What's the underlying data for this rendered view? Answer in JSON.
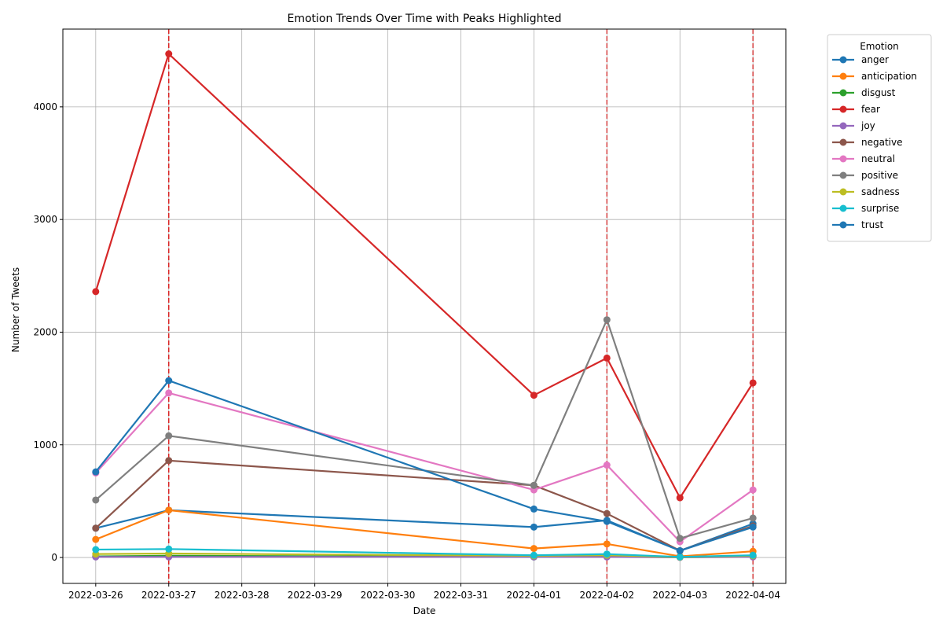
{
  "chart_data": {
    "type": "line",
    "title": "Emotion Trends Over Time with Peaks Highlighted",
    "xlabel": "Date",
    "ylabel": "Number of Tweets",
    "x_ticks": [
      "2022-03-26",
      "2022-03-27",
      "2022-03-28",
      "2022-03-29",
      "2022-03-30",
      "2022-03-31",
      "2022-04-01",
      "2022-04-02",
      "2022-04-03",
      "2022-04-04"
    ],
    "x": [
      "2022-03-26",
      "2022-03-27",
      "2022-04-01",
      "2022-04-02",
      "2022-04-03",
      "2022-04-04"
    ],
    "xlim": [
      "2022-03-25T13:12",
      "2022-04-04T10:48"
    ],
    "ylim": [
      -230,
      4690
    ],
    "y_ticks": [
      0,
      1000,
      2000,
      3000,
      4000
    ],
    "grid": true,
    "legend": {
      "title": "Emotion",
      "placement": "outside-top-right"
    },
    "peaks": [
      {
        "date": "2022-03-27",
        "color": "#ff0000"
      },
      {
        "date": "2022-03-27",
        "color": "#d62728"
      },
      {
        "date": "2022-04-02",
        "color": "#d62728"
      },
      {
        "date": "2022-04-04",
        "color": "#d62728"
      }
    ],
    "series": [
      {
        "name": "anger",
        "color": "#1f77b4",
        "values": [
          260,
          420,
          270,
          330,
          60,
          300
        ]
      },
      {
        "name": "anticipation",
        "color": "#ff7f0e",
        "values": [
          160,
          420,
          80,
          120,
          10,
          55
        ]
      },
      {
        "name": "disgust",
        "color": "#2ca02c",
        "values": [
          10,
          15,
          5,
          10,
          2,
          10
        ]
      },
      {
        "name": "fear",
        "color": "#d62728",
        "values": [
          2360,
          4470,
          1440,
          1770,
          530,
          1550
        ]
      },
      {
        "name": "joy",
        "color": "#9467bd",
        "values": [
          5,
          5,
          5,
          5,
          1,
          5
        ]
      },
      {
        "name": "negative",
        "color": "#8c564b",
        "values": [
          260,
          860,
          640,
          390,
          60,
          280
        ]
      },
      {
        "name": "neutral",
        "color": "#e377c2",
        "values": [
          750,
          1460,
          600,
          820,
          140,
          600
        ]
      },
      {
        "name": "positive",
        "color": "#7f7f7f",
        "values": [
          510,
          1080,
          640,
          2110,
          170,
          350
        ]
      },
      {
        "name": "sadness",
        "color": "#bcbd22",
        "values": [
          30,
          35,
          15,
          20,
          3,
          15
        ]
      },
      {
        "name": "surprise",
        "color": "#17becf",
        "values": [
          70,
          75,
          20,
          30,
          5,
          20
        ]
      },
      {
        "name": "trust",
        "color": "#1f77b4",
        "values": [
          760,
          1570,
          430,
          320,
          60,
          270
        ]
      }
    ]
  }
}
